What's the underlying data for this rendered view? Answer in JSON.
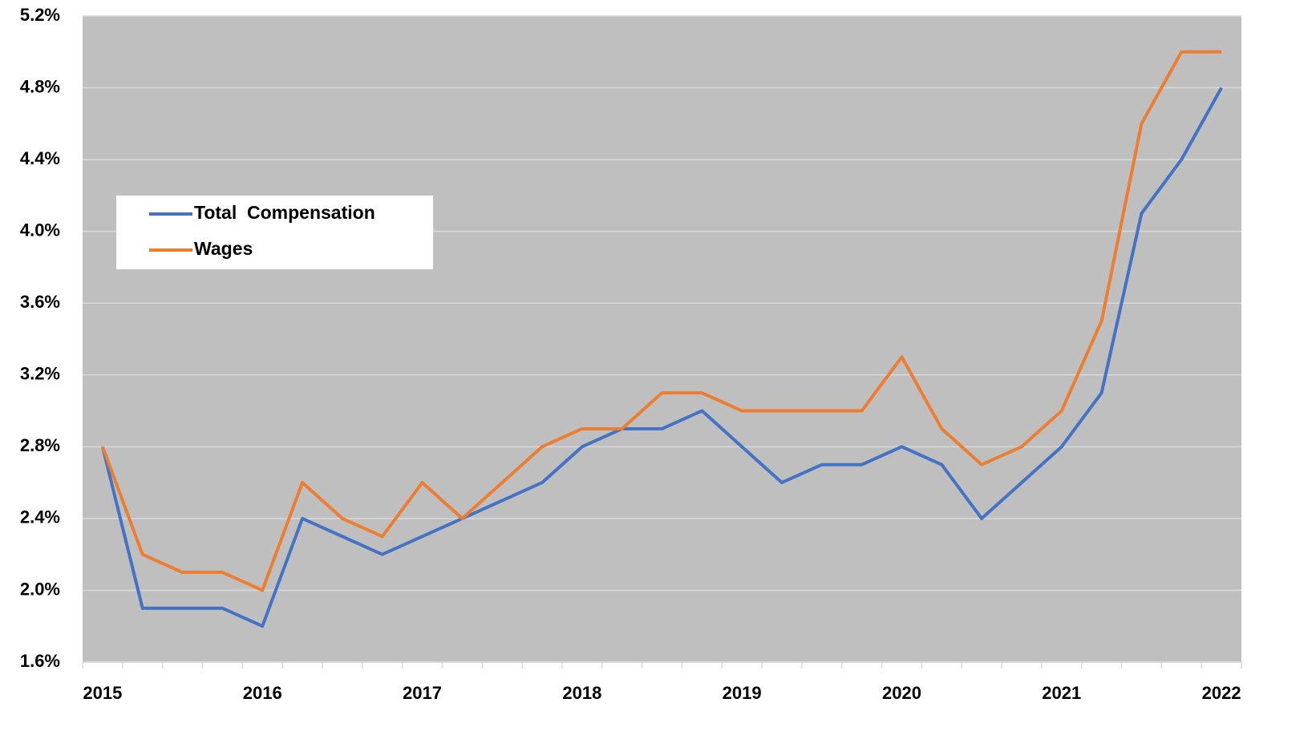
{
  "chart_data": {
    "type": "line",
    "categories": [
      "2015",
      null,
      null,
      null,
      "2016",
      null,
      null,
      null,
      "2017",
      null,
      null,
      null,
      "2018",
      null,
      null,
      null,
      "2019",
      null,
      null,
      null,
      "2020",
      null,
      null,
      null,
      "2021",
      null,
      null,
      null,
      "2022"
    ],
    "series": [
      {
        "name": "Total  Compensation",
        "color": "#4472c4",
        "values": [
          2.8,
          1.9,
          1.9,
          1.9,
          1.8,
          2.4,
          2.3,
          2.2,
          2.3,
          2.4,
          2.5,
          2.6,
          2.8,
          2.9,
          2.9,
          3.0,
          2.8,
          2.6,
          2.7,
          2.7,
          2.8,
          2.7,
          2.4,
          2.6,
          2.8,
          3.1,
          4.1,
          4.4,
          4.8
        ]
      },
      {
        "name": "Wages",
        "color": "#ed7d31",
        "values": [
          2.8,
          2.2,
          2.1,
          2.1,
          2.0,
          2.6,
          2.4,
          2.3,
          2.6,
          2.4,
          2.6,
          2.8,
          2.9,
          2.9,
          3.1,
          3.1,
          3.0,
          3.0,
          3.0,
          3.0,
          3.3,
          2.9,
          2.7,
          2.8,
          3.0,
          3.5,
          4.6,
          5.0,
          5.0
        ]
      }
    ],
    "ylim": [
      1.6,
      5.2
    ],
    "yticks": [
      {
        "value": 1.6,
        "label": "1.6%"
      },
      {
        "value": 2.0,
        "label": "2.0%"
      },
      {
        "value": 2.4,
        "label": "2.4%"
      },
      {
        "value": 2.8,
        "label": "2.8%"
      },
      {
        "value": 3.2,
        "label": "3.2%"
      },
      {
        "value": 3.6,
        "label": "3.6%"
      },
      {
        "value": 4.0,
        "label": "4.0%"
      },
      {
        "value": 4.4,
        "label": "4.4%"
      },
      {
        "value": 4.8,
        "label": "4.8%"
      },
      {
        "value": 5.2,
        "label": "5.2%"
      }
    ],
    "grid": true,
    "legend": "upper left"
  }
}
